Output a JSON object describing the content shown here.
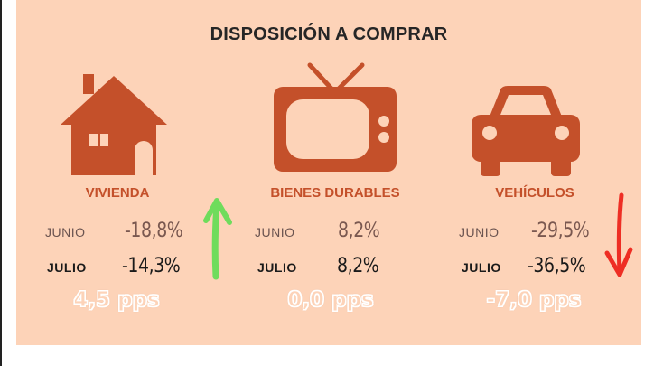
{
  "title": "DISPOSICIÓN A COMPRAR",
  "colors": {
    "background": "#fdd3b8",
    "icon": "#c4502a",
    "up_arrow": "#6fdc5c",
    "down_arrow": "#ee2e24"
  },
  "columns": [
    {
      "label": "VIVIENDA",
      "icon": "house-icon",
      "june_label": "JUNIO",
      "june_value": "-18,8%",
      "july_label": "JULIO",
      "july_value": "-14,3%",
      "change": "4,5 pps",
      "trend": "up-arrow-icon"
    },
    {
      "label": "BIENES DURABLES",
      "icon": "tv-icon",
      "june_label": "JUNIO",
      "june_value": "8,2%",
      "july_label": "JULIO",
      "july_value": "8,2%",
      "change": "0,0 pps",
      "trend": ""
    },
    {
      "label": "VEHÍCULOS",
      "icon": "car-icon",
      "june_label": "JUNIO",
      "june_value": "-29,5%",
      "july_label": "JULIO",
      "july_value": "-36,5%",
      "change": "-7,0 pps",
      "trend": "down-arrow-icon"
    }
  ]
}
